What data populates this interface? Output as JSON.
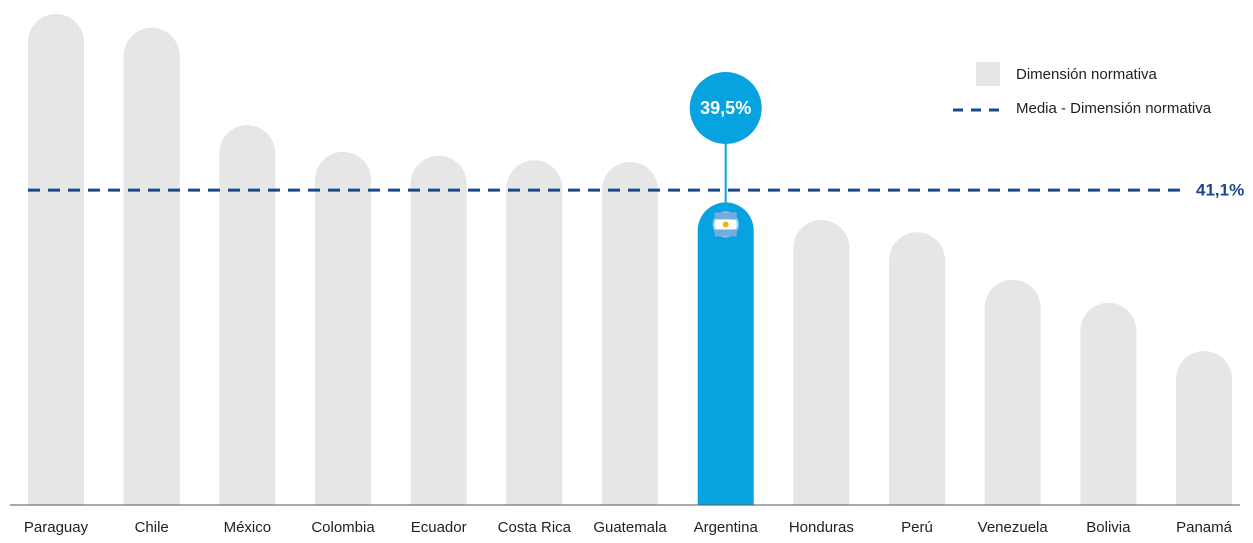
{
  "chart_data": {
    "type": "bar",
    "series_name": "Dimensión normativa",
    "categories": [
      "Paraguay",
      "Chile",
      "México",
      "Colombia",
      "Ecuador",
      "Costa Rica",
      "Guatemala",
      "Argentina",
      "Honduras",
      "Perú",
      "Venezuela",
      "Bolivia",
      "Panamá"
    ],
    "values": [
      64.1,
      62.3,
      49.6,
      46.1,
      45.6,
      45.0,
      44.8,
      39.5,
      37.2,
      35.6,
      29.4,
      26.4,
      20.1
    ],
    "value_labels": [
      null,
      null,
      null,
      null,
      null,
      null,
      null,
      "39,5%",
      null,
      null,
      null,
      null,
      null
    ],
    "colors": [
      "#e6e6e6",
      "#e6e6e6",
      "#e6e6e6",
      "#e6e6e6",
      "#e6e6e6",
      "#e6e6e6",
      "#e6e6e6",
      "#07a3e0",
      "#e6e6e6",
      "#e6e6e6",
      "#e6e6e6",
      "#e6e6e6",
      "#e6e6e6"
    ],
    "reference_line": {
      "name": "Media - Dimensión normativa",
      "value": 41.1,
      "label": "41,1%",
      "color": "#174a8c",
      "style": "dashed"
    },
    "legend": "top-right"
  }
}
